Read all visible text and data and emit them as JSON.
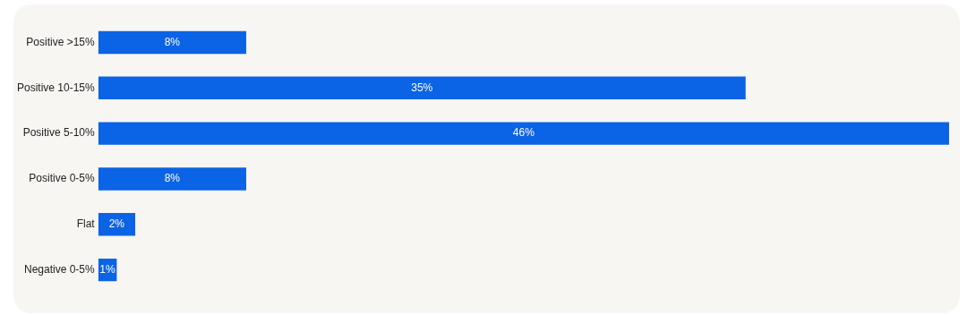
{
  "chart_data": {
    "type": "bar",
    "orientation": "horizontal",
    "categories": [
      "Positive >15%",
      "Positive 10-15%",
      "Positive 5-10%",
      "Positive 0-5%",
      "Flat",
      "Negative 0-5%"
    ],
    "values": [
      8,
      35,
      46,
      8,
      2,
      1
    ],
    "value_labels": [
      "8%",
      "35%",
      "46%",
      "8%",
      "2%",
      "1%"
    ],
    "color": "#0b63e5",
    "grid": false,
    "legend": false
  }
}
